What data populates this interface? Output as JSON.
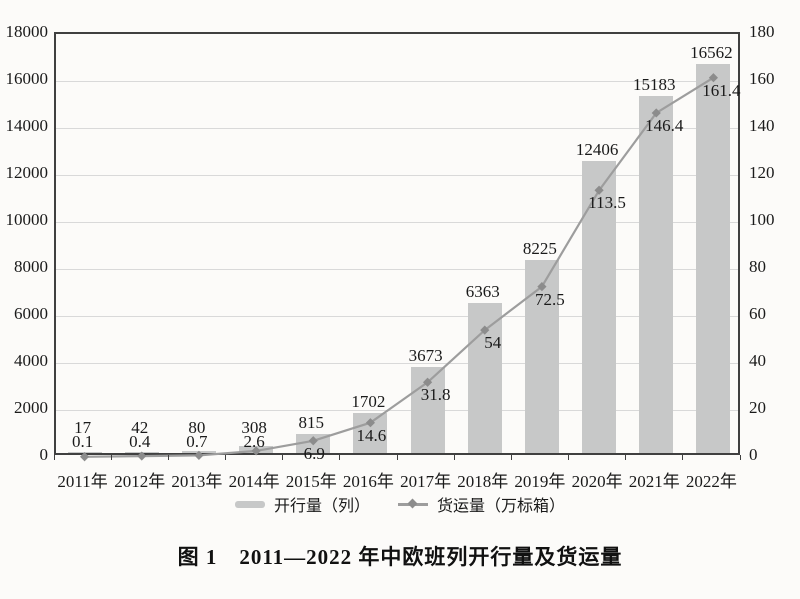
{
  "caption": "图 1　2011—2022 年中欧班列开行量及货运量",
  "colors": {
    "background": "#fcfbf9",
    "bar": "#c7c8c8",
    "line": "#9d9d9d",
    "marker": "#8c8c8c",
    "grid": "#d9d9d9",
    "axis": "#404040",
    "text": "#1a1a1a"
  },
  "chart_data": {
    "type": "bar",
    "categories": [
      "2011年",
      "2012年",
      "2013年",
      "2014年",
      "2015年",
      "2016年",
      "2017年",
      "2018年",
      "2019年",
      "2020年",
      "2021年",
      "2022年"
    ],
    "series": [
      {
        "name": "开行量（列）",
        "kind": "bar",
        "axis": "left",
        "values": [
          17,
          42,
          80,
          308,
          815,
          1702,
          3673,
          6363,
          8225,
          12406,
          15183,
          16562
        ]
      },
      {
        "name": "货运量（万标箱）",
        "kind": "line",
        "axis": "right",
        "values": [
          0.1,
          0.4,
          0.7,
          2.6,
          6.9,
          14.6,
          31.8,
          54,
          72.5,
          113.5,
          146.4,
          161.4
        ]
      }
    ],
    "left_axis": {
      "min": 0,
      "max": 18000,
      "step": 2000
    },
    "right_axis": {
      "min": 0,
      "max": 180,
      "step": 20
    },
    "grid": "horizontal",
    "legend_position": "bottom",
    "title": "图 1　2011—2022 年中欧班列开行量及货运量"
  }
}
